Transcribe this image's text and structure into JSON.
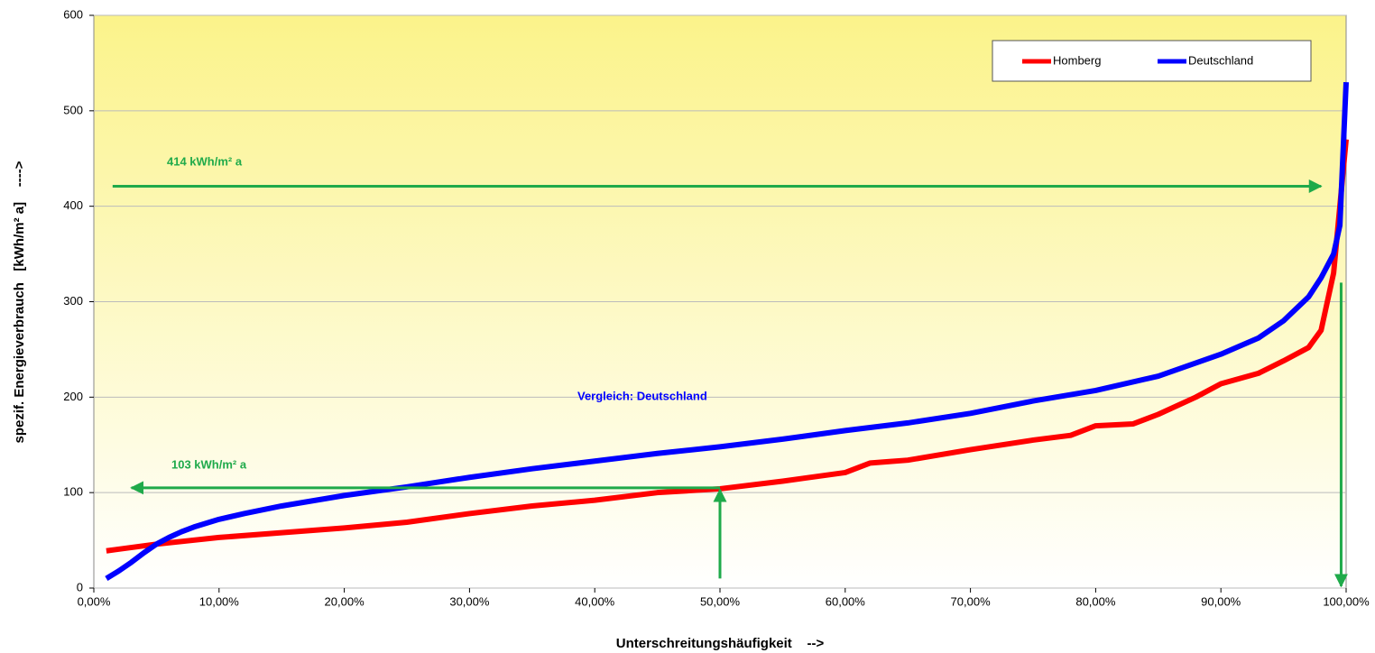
{
  "chart_data": {
    "type": "line",
    "xlabel": "Unterschreitungshäufigkeit    -->",
    "ylabel": "spezif. Energieverbrauch   [kWh/m² a]    ---->",
    "xlim": [
      0,
      100
    ],
    "ylim": [
      0,
      600
    ],
    "xticks": [
      {
        "value": 0,
        "label": "0,00%"
      },
      {
        "value": 10,
        "label": "10,00%"
      },
      {
        "value": 20,
        "label": "20,00%"
      },
      {
        "value": 30,
        "label": "30,00%"
      },
      {
        "value": 40,
        "label": "40,00%"
      },
      {
        "value": 50,
        "label": "50,00%"
      },
      {
        "value": 60,
        "label": "60,00%"
      },
      {
        "value": 70,
        "label": "70,00%"
      },
      {
        "value": 80,
        "label": "80,00%"
      },
      {
        "value": 90,
        "label": "90,00%"
      },
      {
        "value": 100,
        "label": "100,00%"
      }
    ],
    "yticks": [
      0,
      100,
      200,
      300,
      400,
      500,
      600
    ],
    "grid": true,
    "legend": "upper right",
    "series": [
      {
        "name": "Homberg",
        "color": "#ff0000",
        "x": [
          1,
          5,
          10,
          15,
          20,
          25,
          30,
          35,
          40,
          45,
          50,
          55,
          60,
          62,
          65,
          70,
          75,
          78,
          80,
          83,
          85,
          88,
          90,
          93,
          95,
          97,
          98,
          99,
          99.5,
          100
        ],
        "values": [
          39,
          46,
          53,
          58,
          63,
          69,
          78,
          86,
          92,
          100,
          104,
          112,
          121,
          131,
          134,
          145,
          155,
          160,
          170,
          172,
          182,
          200,
          214,
          225,
          238,
          252,
          270,
          330,
          400,
          470
        ]
      },
      {
        "name": "Deutschland",
        "color": "#0000ff",
        "x": [
          1,
          2,
          3,
          4,
          5,
          6,
          7,
          8,
          9,
          10,
          12,
          15,
          20,
          25,
          30,
          35,
          40,
          45,
          50,
          55,
          60,
          65,
          70,
          75,
          80,
          85,
          90,
          93,
          95,
          97,
          98,
          99,
          99.5,
          100
        ],
        "values": [
          10,
          18,
          27,
          37,
          46,
          53,
          59,
          64,
          68,
          72,
          78,
          86,
          97,
          106,
          116,
          125,
          133,
          141,
          148,
          156,
          165,
          173,
          183,
          196,
          207,
          222,
          245,
          262,
          280,
          305,
          325,
          350,
          380,
          530
        ]
      }
    ],
    "annotations": [
      {
        "text": "414 kWh/m² a",
        "color": "#1faa4a"
      },
      {
        "text": "103 kWh/m² a",
        "color": "#1faa4a"
      },
      {
        "text": "Vergleich: Deutschland",
        "color": "#0000ff"
      }
    ],
    "arrows": [
      {
        "x": [
          1.5,
          98
        ],
        "y": [
          421,
          421
        ],
        "color": "#1faa4a"
      },
      {
        "x": [
          50,
          3
        ],
        "y": [
          105,
          105
        ],
        "color": "#1faa4a"
      },
      {
        "x": [
          50,
          50
        ],
        "y": [
          10,
          103
        ],
        "color": "#1faa4a"
      },
      {
        "x": [
          99.6,
          99.6
        ],
        "y": [
          320,
          2
        ],
        "color": "#1faa4a"
      }
    ]
  }
}
